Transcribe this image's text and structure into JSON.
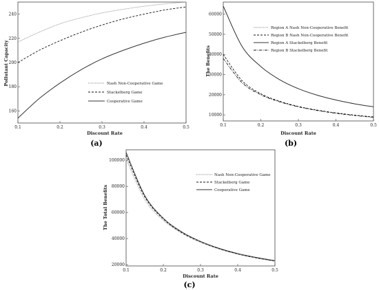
{
  "chart_data": [
    {
      "type": "line",
      "panel_label": "(a)",
      "xlabel": "Discount Rate",
      "ylabel": "Pollutant Capacity",
      "xlim": [
        0.1,
        0.5
      ],
      "ylim": [
        150,
        250
      ],
      "xticks": [
        "0.1",
        "0.2",
        "0.3",
        "0.4",
        "0.5"
      ],
      "yticks": [
        "160",
        "180",
        "200",
        "220",
        "240"
      ],
      "ytick_values": [
        160,
        180,
        200,
        220,
        240
      ],
      "x": [
        0.1,
        0.15,
        0.2,
        0.25,
        0.3,
        0.35,
        0.4,
        0.45,
        0.5
      ],
      "series": [
        {
          "name": "Nash Non-Cooperative Game",
          "style": "dotted",
          "values": [
            217,
            225,
            232,
            237,
            241,
            244,
            246.5,
            248.5,
            250
          ]
        },
        {
          "name": "Stackelberg Game",
          "style": "dashed",
          "values": [
            200,
            210,
            218,
            225,
            231,
            236,
            240,
            243.5,
            246
          ]
        },
        {
          "name": "Cooperative Game",
          "style": "solid",
          "values": [
            154,
            170,
            183,
            194,
            203,
            210,
            216,
            221,
            225
          ]
        }
      ],
      "legend_position": "center-right"
    },
    {
      "type": "line",
      "panel_label": "(b)",
      "xlabel": "Discount Rate",
      "ylabel": "The Benefits",
      "xlim": [
        0.1,
        0.5
      ],
      "ylim": [
        7000,
        66000
      ],
      "xticks": [
        "0.1",
        "0.2",
        "0.3",
        "0.4",
        "0.5"
      ],
      "yticks": [
        "10000",
        "20000",
        "30000",
        "40000",
        "50000",
        "60000"
      ],
      "ytick_values": [
        10000,
        20000,
        30000,
        40000,
        50000,
        60000
      ],
      "x": [
        0.1,
        0.15,
        0.2,
        0.25,
        0.3,
        0.35,
        0.4,
        0.45,
        0.5
      ],
      "series": [
        {
          "name": "Region A Nash Non-Cooperative Benefit",
          "style": "dotted",
          "values": [
            64000,
            44000,
            34000,
            27500,
            23000,
            19800,
            17400,
            15500,
            14000
          ]
        },
        {
          "name": "Region B Nash Non-Cooperative Benefit",
          "style": "dashed",
          "values": [
            40000,
            27000,
            20500,
            16800,
            14200,
            12400,
            11000,
            9900,
            9000
          ]
        },
        {
          "name": "Region A Stackelberg Benefit",
          "style": "solid",
          "values": [
            64000,
            44000,
            34000,
            27500,
            23000,
            19800,
            17400,
            15500,
            14000
          ]
        },
        {
          "name": "Region B Stackelberg Benefit",
          "style": "dashdot",
          "values": [
            38000,
            26000,
            20000,
            16500,
            14000,
            12200,
            10800,
            9700,
            8800
          ]
        }
      ],
      "legend_position": "top-right"
    },
    {
      "type": "line",
      "panel_label": "(c)",
      "xlabel": "Discount Rate",
      "ylabel": "The Total Benefits",
      "xlim": [
        0.1,
        0.5
      ],
      "ylim": [
        19000,
        108000
      ],
      "xticks": [
        "0.1",
        "0.2",
        "0.3",
        "0.4",
        "0.5"
      ],
      "yticks": [
        "20000",
        "40000",
        "60000",
        "80000",
        "100000"
      ],
      "ytick_values": [
        20000,
        40000,
        60000,
        80000,
        100000
      ],
      "x": [
        0.1,
        0.15,
        0.2,
        0.25,
        0.3,
        0.35,
        0.4,
        0.45,
        0.5
      ],
      "series": [
        {
          "name": "Nash Non-Cooperative Game",
          "style": "dotted",
          "values": [
            101000,
            70000,
            54000,
            44000,
            37000,
            32000,
            28000,
            25000,
            22500
          ]
        },
        {
          "name": "Stackelberg Game",
          "style": "dashed",
          "values": [
            104000,
            72000,
            55000,
            44500,
            37500,
            32200,
            28200,
            25200,
            22800
          ]
        },
        {
          "name": "Cooperative Game",
          "style": "solid",
          "values": [
            106000,
            73000,
            55500,
            45000,
            37800,
            32500,
            28500,
            25500,
            23000
          ]
        }
      ],
      "legend_position": "top-right"
    }
  ]
}
